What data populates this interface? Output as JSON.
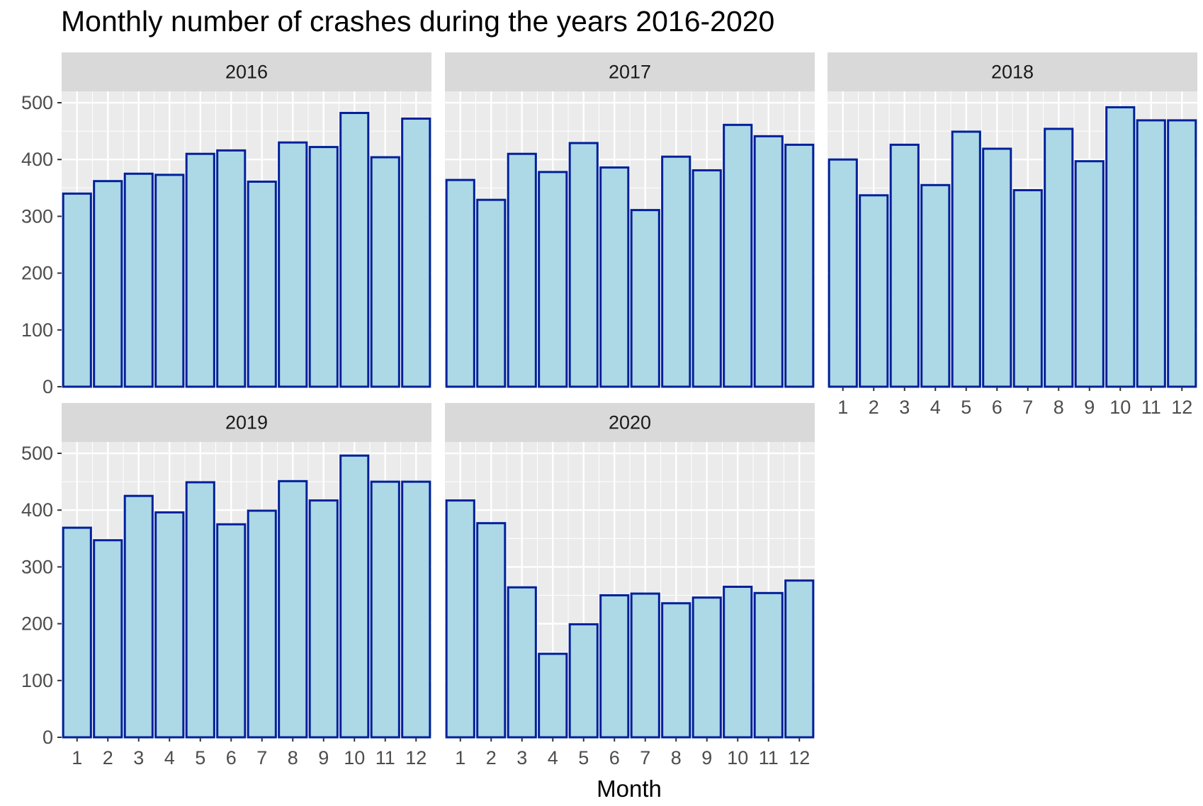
{
  "chart_data": {
    "type": "bar",
    "title": "Monthly number of crashes during the years 2016-2020",
    "xlabel": "Month",
    "ylabel": "",
    "ylim": [
      0,
      520
    ],
    "y_ticks": [
      0,
      100,
      200,
      300,
      400,
      500
    ],
    "categories": [
      "1",
      "2",
      "3",
      "4",
      "5",
      "6",
      "7",
      "8",
      "9",
      "10",
      "11",
      "12"
    ],
    "grid": true,
    "legend": "none",
    "colors": {
      "bar_fill": "#add8e6",
      "bar_stroke": "#00209a",
      "panel_bg": "#ebebeb",
      "strip_bg": "#d9d9d9",
      "grid": "#ffffff"
    },
    "panels": [
      {
        "name": "2016",
        "values": [
          340,
          362,
          375,
          373,
          410,
          416,
          361,
          430,
          422,
          482,
          404,
          472
        ]
      },
      {
        "name": "2017",
        "values": [
          364,
          329,
          410,
          378,
          429,
          386,
          311,
          405,
          381,
          461,
          441,
          426
        ]
      },
      {
        "name": "2018",
        "values": [
          400,
          337,
          426,
          355,
          449,
          419,
          346,
          454,
          397,
          492,
          469,
          469
        ]
      },
      {
        "name": "2019",
        "values": [
          369,
          347,
          425,
          396,
          449,
          375,
          399,
          451,
          417,
          496,
          450,
          450
        ]
      },
      {
        "name": "2020",
        "values": [
          417,
          377,
          264,
          147,
          199,
          250,
          253,
          236,
          246,
          265,
          254,
          276
        ]
      }
    ]
  }
}
